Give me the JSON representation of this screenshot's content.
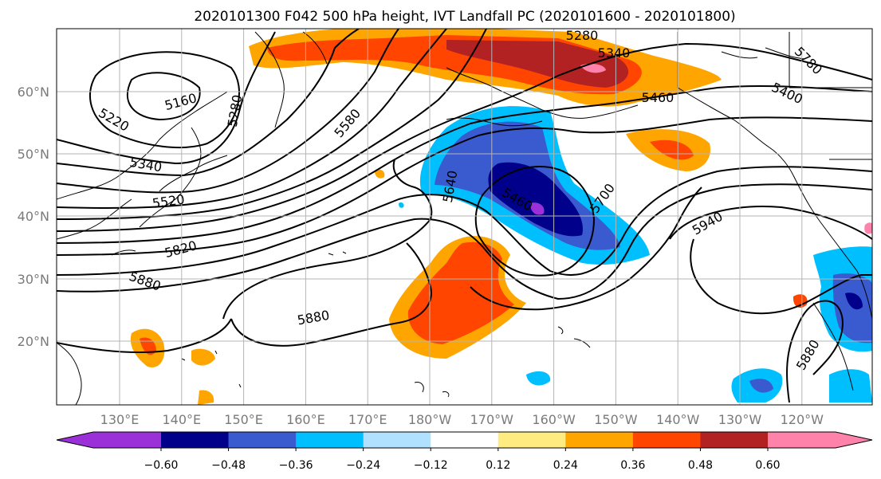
{
  "title": "2020101300 F042 500 hPa height, IVT Landfall PC (2020101600 - 2020101800)",
  "map": {
    "lon_ticks": [
      "130°E",
      "140°E",
      "150°E",
      "160°E",
      "170°E",
      "180°W",
      "170°W",
      "160°W",
      "150°W",
      "140°W",
      "130°W",
      "120°W"
    ],
    "lat_ticks": [
      "60°N",
      "50°N",
      "40°N",
      "30°N",
      "20°N"
    ],
    "grid": true
  },
  "colorbar": {
    "colors": [
      "#9b30d9",
      "#00008b",
      "#3a5bd0",
      "#00bfff",
      "#b0e2ff",
      "#ffffff",
      "#ffeb80",
      "#ffa500",
      "#ff4500",
      "#b22222",
      "#ff82ab"
    ],
    "labels": [
      "−0.60",
      "−0.48",
      "−0.36",
      "−0.24",
      "−0.12",
      "0.12",
      "0.24",
      "0.36",
      "0.48",
      "0.60"
    ]
  },
  "contour_labels": [
    "5280",
    "5340",
    "5780",
    "5220",
    "5160",
    "5280",
    "5400",
    "5460",
    "5580",
    "5640",
    "5340",
    "5460",
    "5700",
    "5520",
    "5940",
    "5820",
    "5880",
    "5880",
    "5880"
  ]
}
